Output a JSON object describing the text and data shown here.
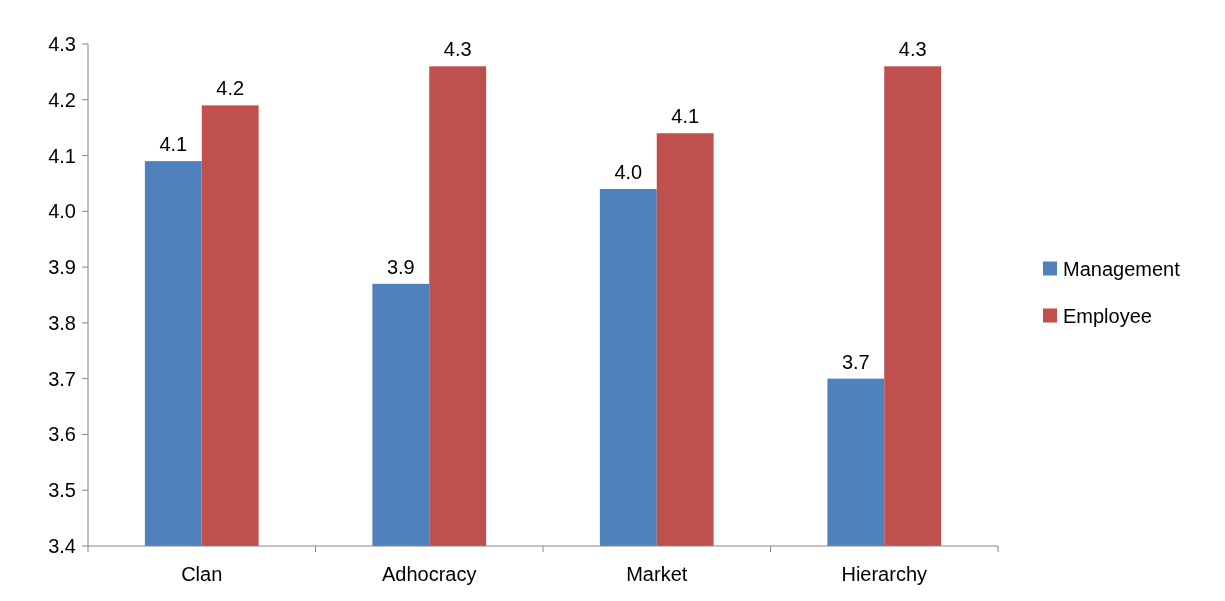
{
  "chart_data": {
    "type": "bar",
    "categories": [
      "Clan",
      "Adhocracy",
      "Market",
      "Hierarchy"
    ],
    "series": [
      {
        "name": "Management",
        "color": "#4f81bd",
        "values": [
          4.09,
          3.87,
          4.04,
          3.7
        ],
        "value_labels": [
          "4.1",
          "3.9",
          "4.0",
          "3.7"
        ]
      },
      {
        "name": "Employee",
        "color": "#c0504d",
        "values": [
          4.19,
          4.26,
          4.14,
          4.26
        ],
        "value_labels": [
          "4.2",
          "4.3",
          "4.1",
          "4.3"
        ]
      }
    ],
    "ylim": [
      3.4,
      4.3
    ],
    "yticks": [
      {
        "value": 3.4,
        "label": "3.4"
      },
      {
        "value": 3.5,
        "label": "3.5"
      },
      {
        "value": 3.6,
        "label": "3.6"
      },
      {
        "value": 3.7,
        "label": "3.7"
      },
      {
        "value": 3.8,
        "label": "3.8"
      },
      {
        "value": 3.9,
        "label": "3.9"
      },
      {
        "value": 4.0,
        "label": "4.0"
      },
      {
        "value": 4.1,
        "label": "4.1"
      },
      {
        "value": 4.2,
        "label": "4.2"
      },
      {
        "value": 4.3,
        "label": "4.3"
      }
    ],
    "grid": false,
    "legend": "right"
  }
}
